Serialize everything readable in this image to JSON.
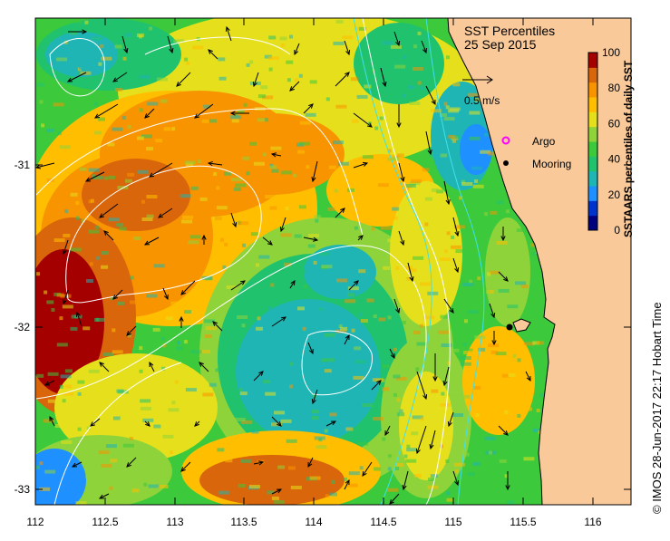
{
  "title": "SST Percentiles",
  "date": "25 Sep 2015",
  "scale_arrow_label": "0.5 m/s",
  "legend": {
    "argo_label": "Argo",
    "mooring_label": "Mooring"
  },
  "colorbar": {
    "label": "SSTAARS percentiles of daily SST",
    "ticks": [
      "100",
      "80",
      "60",
      "40",
      "20",
      "0"
    ]
  },
  "credit": "© IMOS 28-Jun-2017 22:17 Hobart Time",
  "axes": {
    "x_ticks": [
      "112",
      "112.5",
      "113",
      "113.5",
      "114",
      "114.5",
      "115",
      "115.5",
      "116"
    ],
    "y_ticks": [
      "-31",
      "-32",
      "-33"
    ]
  },
  "colors": {
    "land": "#f9c99a",
    "palette": [
      "#00007f",
      "#0033cc",
      "#1e90ff",
      "#1fb5b5",
      "#21c26d",
      "#3cc93c",
      "#8fd33a",
      "#e6e01c",
      "#ffbf00",
      "#f79400",
      "#d9660a",
      "#a50000"
    ],
    "argo": "#ff00ff",
    "mooring": "#000000"
  }
}
